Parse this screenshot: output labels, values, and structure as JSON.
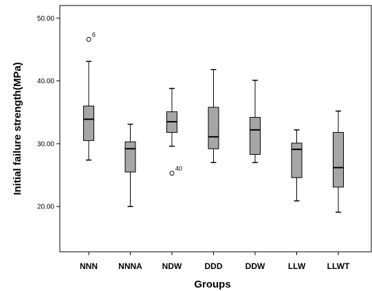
{
  "chart_data": {
    "type": "boxplot",
    "xlabel": "Groups",
    "ylabel": "Initial failure strength(MPa)",
    "ylim": [
      12.8,
      52.0
    ],
    "yticks": [
      20.0,
      30.0,
      40.0,
      50.0
    ],
    "ytick_labels": [
      "20.00",
      "30.00",
      "40.00",
      "50.00"
    ],
    "grid": false,
    "box_color": "#a6a6a6",
    "categories": [
      "NNN",
      "NNNA",
      "NDW",
      "DDD",
      "DDW",
      "LLW",
      "LLWT"
    ],
    "boxes": [
      {
        "category": "NNN",
        "whisker_low": 27.4,
        "q1": 30.5,
        "median": 33.9,
        "q3": 36.0,
        "whisker_high": 43.1
      },
      {
        "category": "NNNA",
        "whisker_low": 20.0,
        "q1": 25.5,
        "median": 29.2,
        "q3": 30.3,
        "whisker_high": 33.1
      },
      {
        "category": "NDW",
        "whisker_low": 29.6,
        "q1": 31.8,
        "median": 33.5,
        "q3": 35.1,
        "whisker_high": 38.8
      },
      {
        "category": "DDD",
        "whisker_low": 27.0,
        "q1": 29.2,
        "median": 31.1,
        "q3": 35.8,
        "whisker_high": 41.8
      },
      {
        "category": "DDW",
        "whisker_low": 27.0,
        "q1": 28.3,
        "median": 32.2,
        "q3": 34.2,
        "whisker_high": 40.1
      },
      {
        "category": "LLW",
        "whisker_low": 20.9,
        "q1": 24.6,
        "median": 29.1,
        "q3": 30.1,
        "whisker_high": 32.2
      },
      {
        "category": "LLWT",
        "whisker_low": 19.1,
        "q1": 23.1,
        "median": 26.2,
        "q3": 31.8,
        "whisker_high": 35.2
      }
    ],
    "outliers": [
      {
        "category": "NNN",
        "value": 46.6,
        "label": "6"
      },
      {
        "category": "NDW",
        "value": 25.3,
        "label": "40"
      }
    ]
  }
}
